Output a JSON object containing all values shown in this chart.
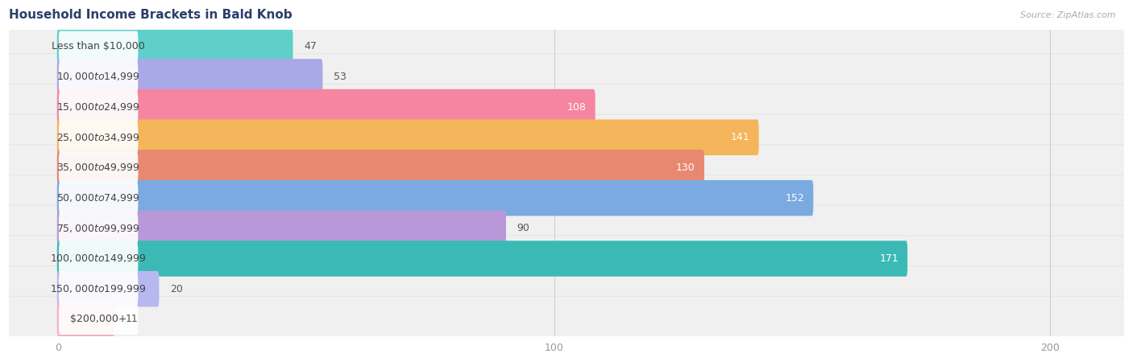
{
  "title": "Household Income Brackets in Bald Knob",
  "source": "Source: ZipAtlas.com",
  "categories": [
    "Less than $10,000",
    "$10,000 to $14,999",
    "$15,000 to $24,999",
    "$25,000 to $34,999",
    "$35,000 to $49,999",
    "$50,000 to $74,999",
    "$75,000 to $99,999",
    "$100,000 to $149,999",
    "$150,000 to $199,999",
    "$200,000+"
  ],
  "values": [
    47,
    53,
    108,
    141,
    130,
    152,
    90,
    171,
    20,
    11
  ],
  "bar_colors": [
    "#5ecfca",
    "#a9a9e8",
    "#f585a0",
    "#f5b55a",
    "#e88870",
    "#7aaae0",
    "#b898d8",
    "#3bbab5",
    "#b8b8f0",
    "#f5b0c0"
  ],
  "value_inside": [
    false,
    false,
    true,
    true,
    true,
    true,
    false,
    true,
    false,
    false
  ],
  "xlim_min": -10,
  "xlim_max": 215,
  "background_color": "#ffffff",
  "row_bg_color": "#f0f0f0",
  "row_bg_border": "#e0e0e0",
  "title_fontsize": 11,
  "label_fontsize": 9,
  "value_fontsize": 9,
  "tick_fontsize": 9,
  "xticks": [
    0,
    100,
    200
  ]
}
